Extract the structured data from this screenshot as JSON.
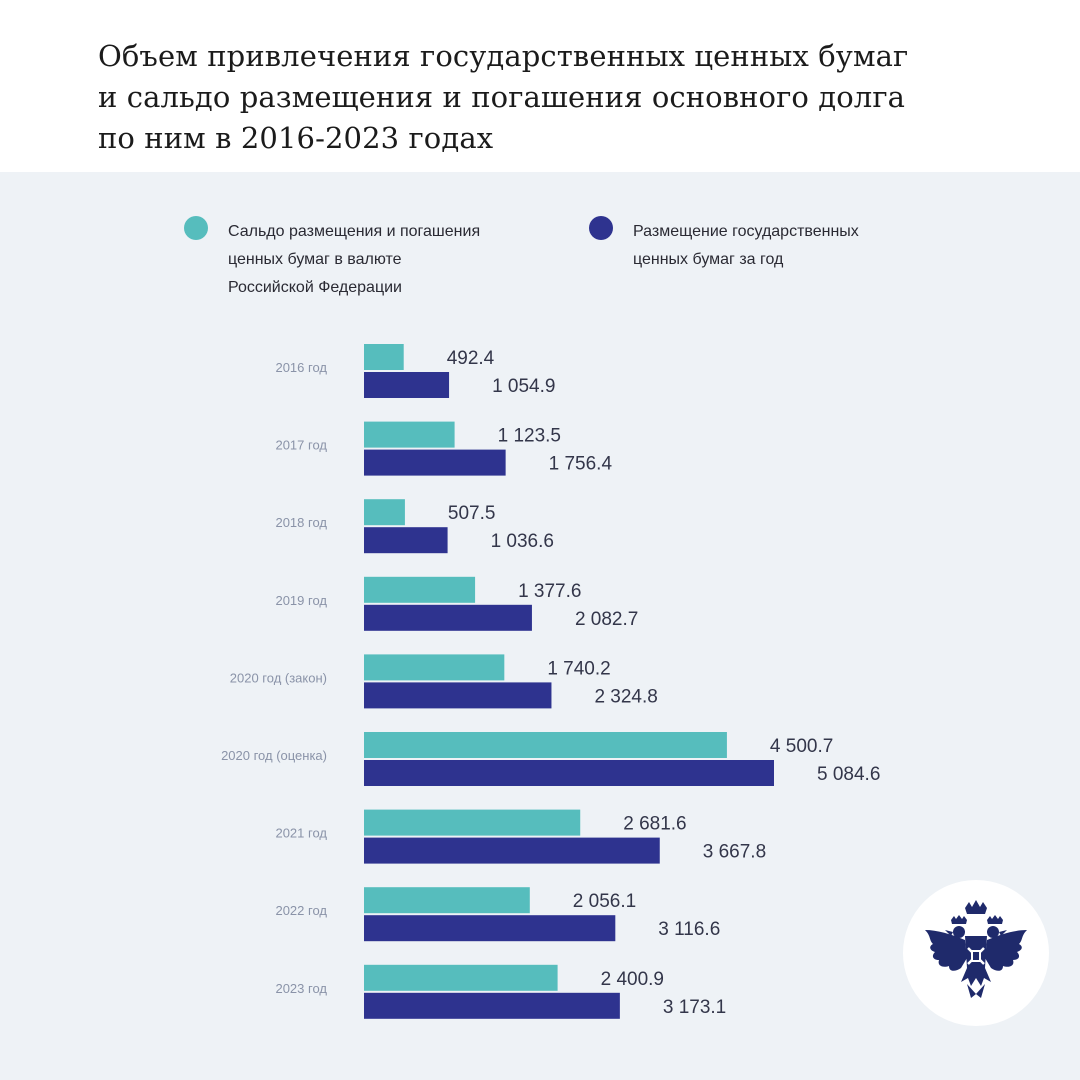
{
  "title_lines": [
    "Объем привлечения государственных ценных бумаг",
    "и сальдо размещения и погашения основного долга",
    "по ним в 2016-2023 годах"
  ],
  "colors": {
    "series_balance": "#56bdbd",
    "series_placement": "#2e338f",
    "category_label": "#8a93a8",
    "value_label": "#33364a",
    "panel_background": "#eef2f6",
    "logo_eagle": "#1f2a6b"
  },
  "legend": {
    "balance_lines": [
      "Сальдо размещения и погашения",
      "ценных бумаг в валюте",
      "Российской Федерации"
    ],
    "placement_lines": [
      "Размещение государственных",
      "ценных бумаг за год"
    ]
  },
  "logo": {
    "icon": "double-headed-eagle-icon"
  },
  "chart_data": {
    "type": "bar",
    "orientation": "horizontal",
    "grouped": true,
    "grid": false,
    "legend_position": "top",
    "categories": [
      "2016 год",
      "2017 год",
      "2018 год",
      "2019 год",
      "2020 год (закон)",
      "2020 год (оценка)",
      "2021 год",
      "2022 год",
      "2023 год"
    ],
    "series": [
      {
        "name": "Сальдо размещения и погашения ценных бумаг в валюте Российской Федерации",
        "values": [
          492.4,
          1123.5,
          507.5,
          1377.6,
          1740.2,
          4500.7,
          2681.6,
          2056.1,
          2400.9
        ],
        "labels": [
          "492.4",
          "1 123.5",
          "507.5",
          "1 377.6",
          "1 740.2",
          "4 500.7",
          "2 681.6",
          "2 056.1",
          "2 400.9"
        ]
      },
      {
        "name": "Размещение государственных ценных бумаг за год",
        "values": [
          1054.9,
          1756.4,
          1036.6,
          2082.7,
          2324.8,
          5084.6,
          3667.8,
          3116.6,
          3173.1
        ],
        "labels": [
          "1 054.9",
          "1 756.4",
          "1 036.6",
          "2 082.7",
          "2 324.8",
          "5 084.6",
          "3 667.8",
          "3 116.6",
          "3 173.1"
        ]
      }
    ],
    "xlim": [
      0,
      5084.6
    ]
  }
}
